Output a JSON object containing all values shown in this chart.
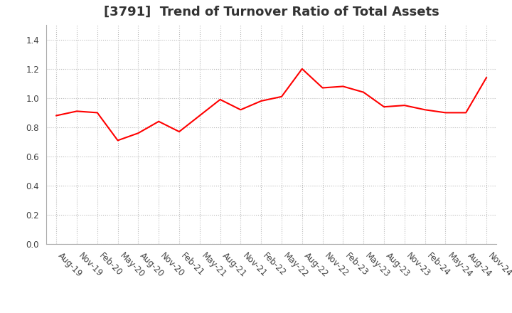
{
  "title": "[3791]  Trend of Turnover Ratio of Total Assets",
  "x_labels": [
    "Aug-19",
    "Nov-19",
    "Feb-20",
    "May-20",
    "Aug-20",
    "Nov-20",
    "Feb-21",
    "May-21",
    "Aug-21",
    "Nov-21",
    "Feb-22",
    "May-22",
    "Aug-22",
    "Nov-22",
    "Feb-23",
    "May-23",
    "Aug-23",
    "Nov-23",
    "Feb-24",
    "May-24",
    "Aug-24",
    "Nov-24"
  ],
  "y_values": [
    0.88,
    0.91,
    0.9,
    0.71,
    0.76,
    0.84,
    0.77,
    0.88,
    0.99,
    0.92,
    0.98,
    1.01,
    1.2,
    1.07,
    1.08,
    1.04,
    0.94,
    0.95,
    0.92,
    0.9,
    0.9,
    1.14
  ],
  "line_color": "#FF0000",
  "line_width": 1.5,
  "ylim": [
    0.0,
    1.5
  ],
  "yticks": [
    0.0,
    0.2,
    0.4,
    0.6,
    0.8,
    1.0,
    1.2,
    1.4
  ],
  "background_color": "#ffffff",
  "grid_color": "#bbbbbb",
  "title_fontsize": 13,
  "tick_fontsize": 8.5,
  "title_color": "#333333"
}
